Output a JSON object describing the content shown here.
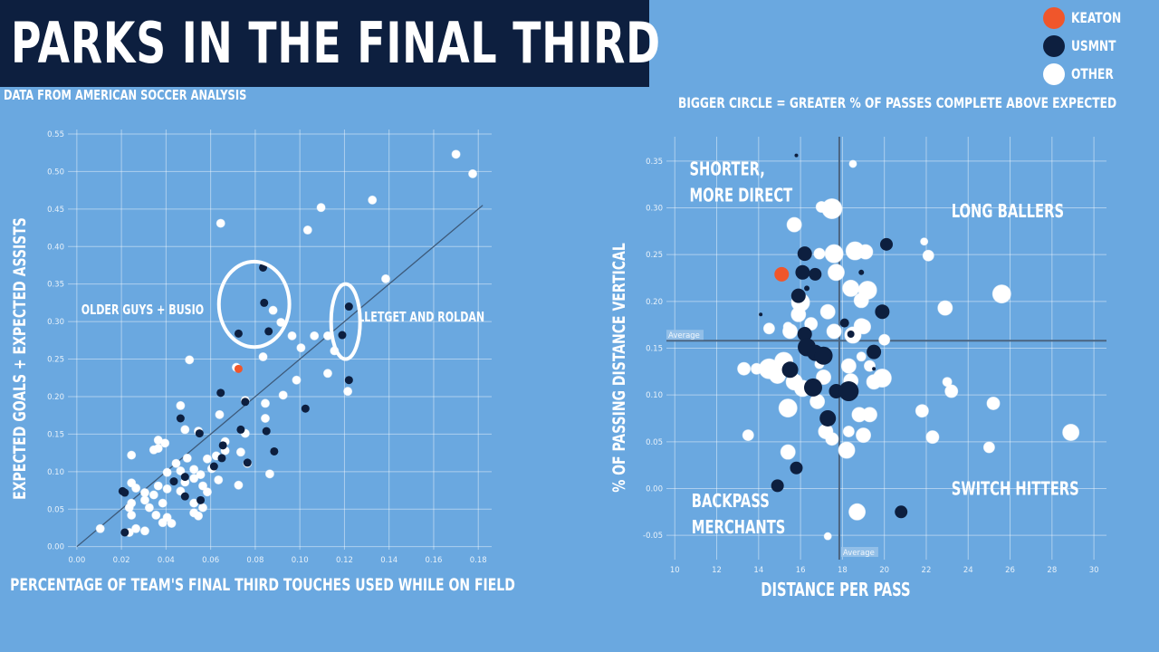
{
  "title": "PARKS IN THE FINAL THIRD",
  "source": "DATA FROM AMERICAN SOCCER ANALYSIS",
  "subtitle": "BIGGER CIRCLE = GREATER % OF PASSES COMPLETE ABOVE EXPECTED",
  "colors": {
    "keaton": "#f0562b",
    "usmnt": "#0d1f3f",
    "other": "#ffffff",
    "background": "#6aa8e0"
  },
  "legend": [
    {
      "label": "KEATON",
      "group": "keaton"
    },
    {
      "label": "USMNT",
      "group": "usmnt"
    },
    {
      "label": "OTHER",
      "group": "other"
    }
  ],
  "chart_data": [
    {
      "type": "scatter",
      "xlabel": "PERCENTAGE OF TEAM'S FINAL THIRD TOUCHES USED WHILE ON FIELD",
      "ylabel": "EXPECTED GOALS + EXPECTED ASSISTS",
      "xlim": [
        -0.004,
        0.186
      ],
      "ylim": [
        -0.004,
        0.556
      ],
      "xticks": [
        "0.00",
        "0.02",
        "0.04",
        "0.06",
        "0.08",
        "0.10",
        "0.12",
        "0.14",
        "0.16",
        "0.18"
      ],
      "yticks": [
        "0.00",
        "0.05",
        "0.10",
        "0.15",
        "0.20",
        "0.25",
        "0.30",
        "0.35",
        "0.40",
        "0.45",
        "0.50",
        "0.55"
      ],
      "grid": true,
      "trend_line": {
        "x": [
          0.0,
          0.182
        ],
        "y": [
          0.0,
          0.455
        ]
      },
      "annotations": [
        {
          "text": "OLDER GUYS + BUSIO",
          "x": 0.002,
          "y": 0.31
        },
        {
          "text": "LLETGET AND ROLDAN",
          "x": 0.126,
          "y": 0.3
        }
      ],
      "highlight_ellipses": [
        {
          "cx": 0.0795,
          "cy": 0.323,
          "rx": 0.0158,
          "ry": 0.057
        },
        {
          "cx": 0.1205,
          "cy": 0.3,
          "rx": 0.0065,
          "ry": 0.05
        }
      ],
      "series": [
        {
          "name": "KEATON",
          "group": "keaton",
          "points": [
            [
              0.0725,
              0.237
            ]
          ]
        },
        {
          "name": "USMNT",
          "group": "usmnt",
          "points": [
            [
              0.0835,
              0.372
            ],
            [
              0.084,
              0.325
            ],
            [
              0.086,
              0.287
            ],
            [
              0.0725,
              0.284
            ],
            [
              0.122,
              0.32
            ],
            [
              0.119,
              0.282
            ],
            [
              0.122,
              0.222
            ],
            [
              0.0645,
              0.205
            ],
            [
              0.0755,
              0.193
            ],
            [
              0.1025,
              0.184
            ],
            [
              0.0465,
              0.171
            ],
            [
              0.055,
              0.151
            ],
            [
              0.0735,
              0.156
            ],
            [
              0.085,
              0.154
            ],
            [
              0.0655,
              0.135
            ],
            [
              0.0885,
              0.127
            ],
            [
              0.0765,
              0.112
            ],
            [
              0.0615,
              0.107
            ],
            [
              0.065,
              0.118
            ],
            [
              0.0435,
              0.087
            ],
            [
              0.0485,
              0.093
            ],
            [
              0.0205,
              0.074
            ],
            [
              0.0215,
              0.072
            ],
            [
              0.0485,
              0.067
            ],
            [
              0.0555,
              0.062
            ],
            [
              0.0215,
              0.019
            ]
          ]
        },
        {
          "name": "OTHER",
          "group": "other",
          "points": [
            [
              0.17,
              0.523
            ],
            [
              0.1775,
              0.497
            ],
            [
              0.1325,
              0.462
            ],
            [
              0.1095,
              0.452
            ],
            [
              0.0645,
              0.431
            ],
            [
              0.1035,
              0.422
            ],
            [
              0.1385,
              0.357
            ],
            [
              0.0915,
              0.299
            ],
            [
              0.088,
              0.315
            ],
            [
              0.0965,
              0.281
            ],
            [
              0.1065,
              0.281
            ],
            [
              0.1125,
              0.281
            ],
            [
              0.1005,
              0.265
            ],
            [
              0.1155,
              0.261
            ],
            [
              0.0505,
              0.249
            ],
            [
              0.0835,
              0.253
            ],
            [
              0.0715,
              0.239
            ],
            [
              0.1125,
              0.231
            ],
            [
              0.0985,
              0.222
            ],
            [
              0.1215,
              0.207
            ],
            [
              0.0465,
              0.188
            ],
            [
              0.0925,
              0.202
            ],
            [
              0.0755,
              0.195
            ],
            [
              0.064,
              0.176
            ],
            [
              0.0845,
              0.171
            ],
            [
              0.0845,
              0.191
            ],
            [
              0.0485,
              0.156
            ],
            [
              0.0755,
              0.151
            ],
            [
              0.0545,
              0.154
            ],
            [
              0.0665,
              0.14
            ],
            [
              0.0365,
              0.142
            ],
            [
              0.0395,
              0.138
            ],
            [
              0.0365,
              0.131
            ],
            [
              0.0345,
              0.129
            ],
            [
              0.0245,
              0.122
            ],
            [
              0.0665,
              0.128
            ],
            [
              0.0625,
              0.121
            ],
            [
              0.0735,
              0.126
            ],
            [
              0.0585,
              0.117
            ],
            [
              0.0495,
              0.118
            ],
            [
              0.0445,
              0.111
            ],
            [
              0.0765,
              0.111
            ],
            [
              0.0605,
              0.104
            ],
            [
              0.0525,
              0.103
            ],
            [
              0.0465,
              0.101
            ],
            [
              0.0405,
              0.099
            ],
            [
              0.0865,
              0.097
            ],
            [
              0.0555,
              0.096
            ],
            [
              0.0525,
              0.091
            ],
            [
              0.0635,
              0.089
            ],
            [
              0.0485,
              0.086
            ],
            [
              0.0565,
              0.081
            ],
            [
              0.0725,
              0.082
            ],
            [
              0.0365,
              0.081
            ],
            [
              0.0245,
              0.085
            ],
            [
              0.0265,
              0.078
            ],
            [
              0.0305,
              0.072
            ],
            [
              0.0345,
              0.069
            ],
            [
              0.0405,
              0.077
            ],
            [
              0.0465,
              0.074
            ],
            [
              0.0585,
              0.073
            ],
            [
              0.0305,
              0.062
            ],
            [
              0.0245,
              0.058
            ],
            [
              0.0235,
              0.052
            ],
            [
              0.0325,
              0.052
            ],
            [
              0.0385,
              0.058
            ],
            [
              0.0525,
              0.058
            ],
            [
              0.0565,
              0.052
            ],
            [
              0.0245,
              0.042
            ],
            [
              0.0355,
              0.042
            ],
            [
              0.0405,
              0.039
            ],
            [
              0.0525,
              0.045
            ],
            [
              0.0545,
              0.041
            ],
            [
              0.0385,
              0.032
            ],
            [
              0.0425,
              0.031
            ],
            [
              0.0265,
              0.024
            ],
            [
              0.0305,
              0.021
            ],
            [
              0.0105,
              0.024
            ],
            [
              0.0235,
              0.019
            ]
          ]
        }
      ]
    },
    {
      "type": "scatter",
      "xlabel": "DISTANCE PER PASS",
      "ylabel": "% OF PASSING DISTANCE VERTICAL",
      "xlim": [
        9.6,
        30.6
      ],
      "ylim": [
        -0.076,
        0.376
      ],
      "xticks": [
        "10",
        "12",
        "14",
        "16",
        "18",
        "20",
        "22",
        "24",
        "26",
        "28",
        "30"
      ],
      "yticks": [
        "-0.05",
        "0.00",
        "0.05",
        "0.10",
        "0.15",
        "0.20",
        "0.25",
        "0.30",
        "0.35"
      ],
      "grid": true,
      "average_x": 17.85,
      "average_y": 0.158,
      "average_label": "Average",
      "quadrant_labels": [
        {
          "lines": [
            "SHORTER,",
            "MORE DIRECT"
          ],
          "x": 10.7,
          "y": 0.335
        },
        {
          "lines": [
            "LONG BALLERS"
          ],
          "x": 23.2,
          "y": 0.29
        },
        {
          "lines": [
            "BACKPASS",
            "MERCHANTS"
          ],
          "x": 10.8,
          "y": -0.02
        },
        {
          "lines": [
            "SWITCH HITTERS"
          ],
          "x": 23.2,
          "y": -0.007
        }
      ],
      "size_encoding": "% of passes complete above expected",
      "series": [
        {
          "name": "KEATON",
          "group": "keaton",
          "points": [
            [
              15.1,
              0.229,
              8
            ]
          ]
        },
        {
          "name": "USMNT",
          "group": "usmnt",
          "points": [
            [
              16.2,
              0.251,
              8
            ],
            [
              16.1,
              0.231,
              8
            ],
            [
              16.7,
              0.229,
              7
            ],
            [
              15.9,
              0.206,
              8
            ],
            [
              16.2,
              0.165,
              8
            ],
            [
              16.3,
              0.151,
              10
            ],
            [
              16.7,
              0.145,
              9
            ],
            [
              17.1,
              0.142,
              10
            ],
            [
              15.5,
              0.127,
              9
            ],
            [
              16.6,
              0.108,
              10
            ],
            [
              17.7,
              0.104,
              8
            ],
            [
              18.3,
              0.104,
              11
            ],
            [
              17.3,
              0.075,
              9
            ],
            [
              20.1,
              0.261,
              7
            ],
            [
              19.9,
              0.189,
              8
            ],
            [
              19.5,
              0.146,
              8
            ],
            [
              18.1,
              0.177,
              5
            ],
            [
              18.4,
              0.165,
              4
            ],
            [
              15.8,
              0.022,
              7
            ],
            [
              14.9,
              0.003,
              7
            ],
            [
              20.8,
              -0.025,
              7
            ],
            [
              15.8,
              0.356,
              2
            ],
            [
              14.1,
              0.186,
              2
            ],
            [
              18.9,
              0.231,
              3
            ],
            [
              16.3,
              0.214,
              3
            ],
            [
              19.5,
              0.128,
              2
            ]
          ]
        },
        {
          "name": "OTHER",
          "group": "other",
          "points": [
            [
              17.5,
              0.299,
              11
            ],
            [
              17.0,
              0.301,
              6
            ],
            [
              18.5,
              0.347,
              4
            ],
            [
              15.7,
              0.282,
              8
            ],
            [
              16.9,
              0.251,
              6
            ],
            [
              17.6,
              0.251,
              10
            ],
            [
              18.6,
              0.254,
              10
            ],
            [
              19.1,
              0.253,
              8
            ],
            [
              17.7,
              0.231,
              9
            ],
            [
              18.4,
              0.214,
              9
            ],
            [
              19.2,
              0.212,
              10
            ],
            [
              18.9,
              0.201,
              8
            ],
            [
              16.0,
              0.199,
              10
            ],
            [
              15.9,
              0.186,
              8
            ],
            [
              17.3,
              0.189,
              8
            ],
            [
              16.5,
              0.176,
              7
            ],
            [
              15.5,
              0.168,
              8
            ],
            [
              14.5,
              0.171,
              6
            ],
            [
              17.6,
              0.168,
              8
            ],
            [
              18.5,
              0.164,
              9
            ],
            [
              18.9,
              0.174,
              8
            ],
            [
              19.0,
              0.173,
              8
            ],
            [
              20.0,
              0.159,
              6
            ],
            [
              15.2,
              0.136,
              10
            ],
            [
              14.9,
              0.121,
              9
            ],
            [
              14.5,
              0.128,
              11
            ],
            [
              13.9,
              0.128,
              6
            ],
            [
              15.7,
              0.114,
              9
            ],
            [
              16.1,
              0.107,
              9
            ],
            [
              17.1,
              0.119,
              8
            ],
            [
              18.3,
              0.131,
              8
            ],
            [
              18.9,
              0.141,
              5
            ],
            [
              19.3,
              0.131,
              6
            ],
            [
              18.4,
              0.115,
              8
            ],
            [
              19.5,
              0.114,
              8
            ],
            [
              19.9,
              0.118,
              10
            ],
            [
              15.4,
              0.086,
              10
            ],
            [
              16.8,
              0.093,
              8
            ],
            [
              18.8,
              0.079,
              8
            ],
            [
              19.3,
              0.079,
              8
            ],
            [
              18.3,
              0.061,
              6
            ],
            [
              17.2,
              0.061,
              8
            ],
            [
              17.5,
              0.053,
              7
            ],
            [
              19.0,
              0.057,
              8
            ],
            [
              15.4,
              0.039,
              8
            ],
            [
              18.2,
              0.041,
              9
            ],
            [
              18.7,
              -0.025,
              9
            ],
            [
              22.1,
              0.249,
              6
            ],
            [
              22.9,
              0.193,
              8
            ],
            [
              21.8,
              0.083,
              7
            ],
            [
              22.3,
              0.055,
              7
            ],
            [
              23.2,
              0.104,
              7
            ],
            [
              23.0,
              0.114,
              5
            ],
            [
              25.6,
              0.208,
              10
            ],
            [
              25.2,
              0.091,
              7
            ],
            [
              25.0,
              0.044,
              6
            ],
            [
              28.9,
              0.06,
              9
            ],
            [
              13.5,
              0.057,
              6
            ],
            [
              13.3,
              0.128,
              7
            ],
            [
              16.5,
              0.149,
              7
            ],
            [
              21.9,
              0.264,
              4
            ],
            [
              17.3,
              -0.051,
              4
            ],
            [
              15.4,
              0.173,
              5
            ],
            [
              16.9,
              0.133,
              5
            ]
          ]
        }
      ]
    }
  ]
}
